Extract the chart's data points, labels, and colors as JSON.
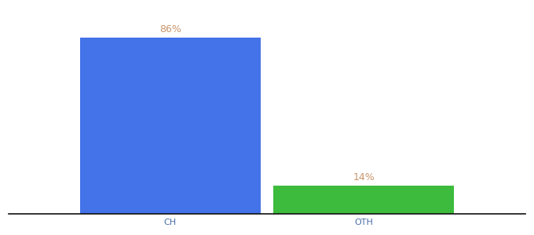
{
  "categories": [
    "CH",
    "OTH"
  ],
  "values": [
    86,
    14
  ],
  "bar_colors": [
    "#4472e8",
    "#3dbb3d"
  ],
  "label_color": "#c8956a",
  "value_labels": [
    "86%",
    "14%"
  ],
  "background_color": "#ffffff",
  "ylim": [
    0,
    100
  ],
  "bar_width": 0.28,
  "x_positions": [
    0.3,
    0.6
  ],
  "xlim": [
    0.05,
    0.85
  ],
  "label_fontsize": 9,
  "tick_fontsize": 8,
  "spine_color": "#111111"
}
